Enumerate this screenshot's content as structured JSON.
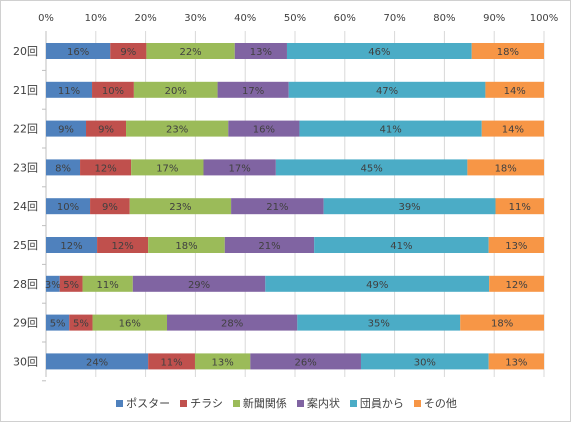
{
  "chart_data": {
    "type": "bar",
    "orientation": "horizontal",
    "stacked": "percent",
    "categories": [
      "20回",
      "21回",
      "22回",
      "23回",
      "24回",
      "25回",
      "28回",
      "29回",
      "30回"
    ],
    "series": [
      {
        "name": "ポスター",
        "color": "#4f81bd",
        "values": [
          16,
          11,
          9,
          8,
          10,
          12,
          3,
          5,
          24
        ]
      },
      {
        "name": "チラシ",
        "color": "#c0504d",
        "values": [
          9,
          10,
          9,
          12,
          9,
          12,
          5,
          5,
          11
        ]
      },
      {
        "name": "新聞関係",
        "color": "#9bbb59",
        "values": [
          22,
          20,
          23,
          17,
          23,
          18,
          11,
          16,
          13
        ]
      },
      {
        "name": "案内状",
        "color": "#8064a2",
        "values": [
          13,
          17,
          16,
          17,
          21,
          21,
          29,
          28,
          26
        ]
      },
      {
        "name": "団員から",
        "color": "#4bacc6",
        "values": [
          46,
          47,
          41,
          45,
          39,
          41,
          49,
          35,
          30
        ]
      },
      {
        "name": "その他",
        "color": "#f79646",
        "values": [
          18,
          14,
          14,
          18,
          11,
          13,
          12,
          18,
          13
        ]
      }
    ],
    "x_ticks": [
      "0%",
      "10%",
      "20%",
      "30%",
      "40%",
      "50%",
      "60%",
      "70%",
      "80%",
      "90%",
      "100%"
    ],
    "xlim": [
      0,
      100
    ],
    "grid": true,
    "legend_position": "bottom",
    "data_labels": true,
    "label_suffix": "%"
  }
}
